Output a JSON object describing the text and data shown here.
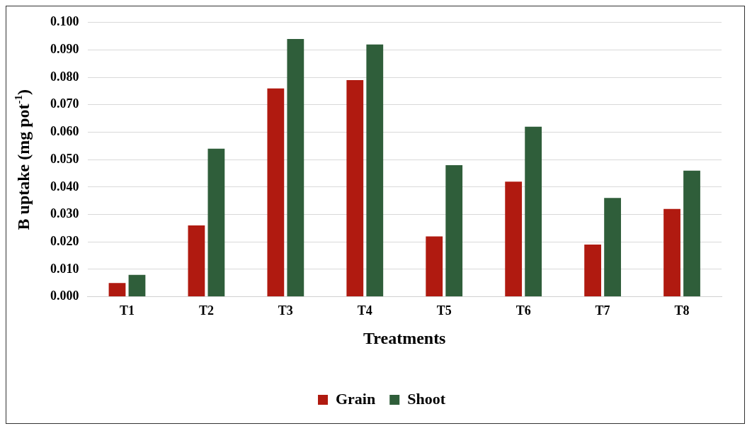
{
  "chart_data": {
    "type": "bar",
    "xlabel": "Treatments",
    "ylabel": "B uptake (mg pot$^{-1}$)",
    "categories": [
      "T1",
      "T2",
      "T3",
      "T4",
      "T5",
      "T6",
      "T7",
      "T8"
    ],
    "series": [
      {
        "name": "Grain",
        "color": "#b01a10",
        "values": [
          0.005,
          0.026,
          0.076,
          0.079,
          0.022,
          0.042,
          0.019,
          0.032
        ]
      },
      {
        "name": "Shoot",
        "color": "#2f5e3a",
        "values": [
          0.008,
          0.054,
          0.094,
          0.092,
          0.048,
          0.062,
          0.036,
          0.046
        ]
      }
    ],
    "ylim": [
      0,
      0.1
    ],
    "yticks": [
      {
        "value": 0,
        "label": "0.000"
      },
      {
        "value": 0.01,
        "label": "0.010"
      },
      {
        "value": 0.02,
        "label": "0.020"
      },
      {
        "value": 0.03,
        "label": "0.030"
      },
      {
        "value": 0.04,
        "label": "0.040"
      },
      {
        "value": 0.05,
        "label": "0.050"
      },
      {
        "value": 0.06,
        "label": "0.060"
      },
      {
        "value": 0.07,
        "label": "0.070"
      },
      {
        "value": 0.08,
        "label": "0.080"
      },
      {
        "value": 0.09,
        "label": "0.090"
      },
      {
        "value": 0.1,
        "label": "0.100"
      }
    ],
    "grid": "y",
    "legend": "bottom"
  }
}
